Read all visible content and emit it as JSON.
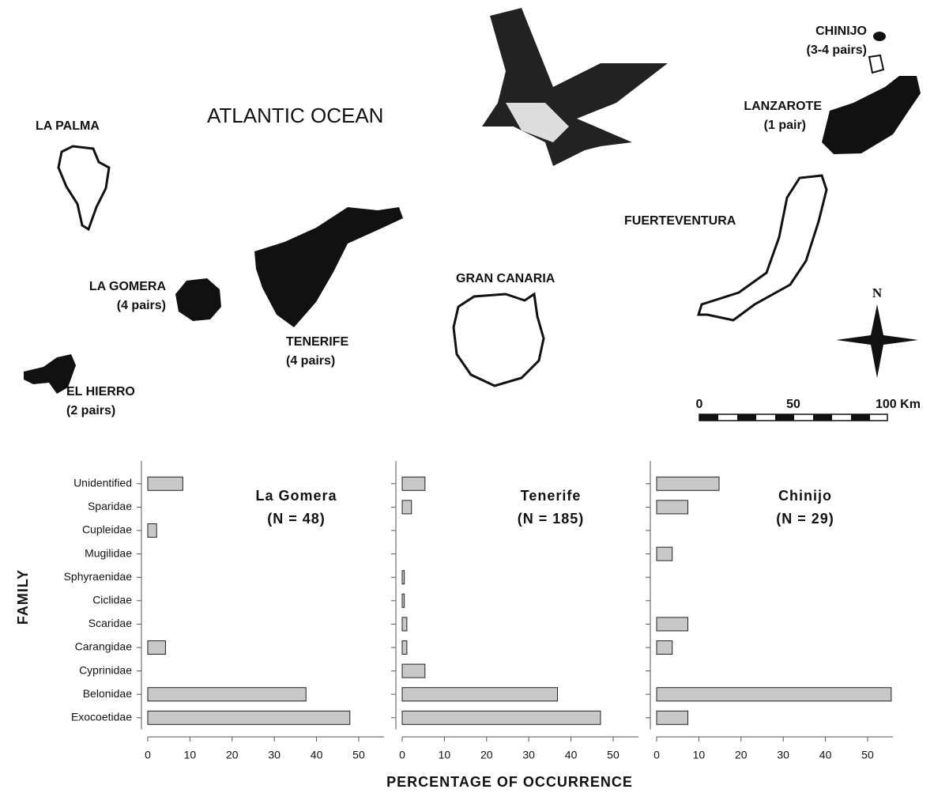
{
  "map": {
    "ocean": "ATLANTIC OCEAN",
    "islands": [
      {
        "name": "LA PALMA"
      },
      {
        "name": "LA GOMERA",
        "pairs": "(4 pairs)"
      },
      {
        "name": "EL HIERRO",
        "pairs": "(2 pairs)"
      },
      {
        "name": "TENERIFE",
        "pairs": "(4 pairs)"
      },
      {
        "name": "GRAN CANARIA"
      },
      {
        "name": "FUERTEVENTURA"
      },
      {
        "name": "LANZAROTE",
        "pairs": "(1 pair)"
      },
      {
        "name": "CHINIJO",
        "pairs": "(3-4 pairs)"
      }
    ],
    "north": "N",
    "scale": [
      "0",
      "50",
      "100 Km"
    ]
  },
  "axis_labels": {
    "x": "PERCENTAGE OF OCCURRENCE",
    "y": "FAMILY"
  },
  "chart_data": [
    {
      "type": "bar",
      "title": "La Gomera",
      "subtitle": "(N = 48)",
      "color": "#c8c8c8",
      "categories": [
        "Unidentified",
        "Sparidae",
        "Cupleidae",
        "Mugilidae",
        "Sphyraenidae",
        "Ciclidae",
        "Scaridae",
        "Carangidae",
        "Cyprinidae",
        "Belonidae",
        "Exocoetidae"
      ],
      "values": [
        8.3,
        0,
        2.1,
        0,
        0,
        0,
        0,
        4.2,
        0,
        37.5,
        47.9
      ],
      "xlim": [
        0,
        56
      ],
      "xticks": [
        0,
        10,
        20,
        30,
        40,
        50
      ]
    },
    {
      "type": "bar",
      "title": "Tenerife",
      "subtitle": "(N = 185)",
      "color": "#c8c8c8",
      "values": [
        5.4,
        2.2,
        0,
        0,
        0.5,
        0.5,
        1.1,
        1.1,
        5.4,
        36.8,
        47.0
      ],
      "xlim": [
        0,
        56
      ],
      "xticks": [
        0,
        10,
        20,
        30,
        40,
        50
      ]
    },
    {
      "type": "bar",
      "title": "Chinijo",
      "subtitle": "(N = 29)",
      "color": "#c8c8c8",
      "values": [
        14.8,
        7.4,
        0,
        3.7,
        0,
        0,
        7.4,
        3.7,
        0,
        55.6,
        7.4
      ],
      "xlim": [
        0,
        56
      ],
      "xticks": [
        0,
        10,
        20,
        30,
        40,
        50
      ]
    }
  ]
}
